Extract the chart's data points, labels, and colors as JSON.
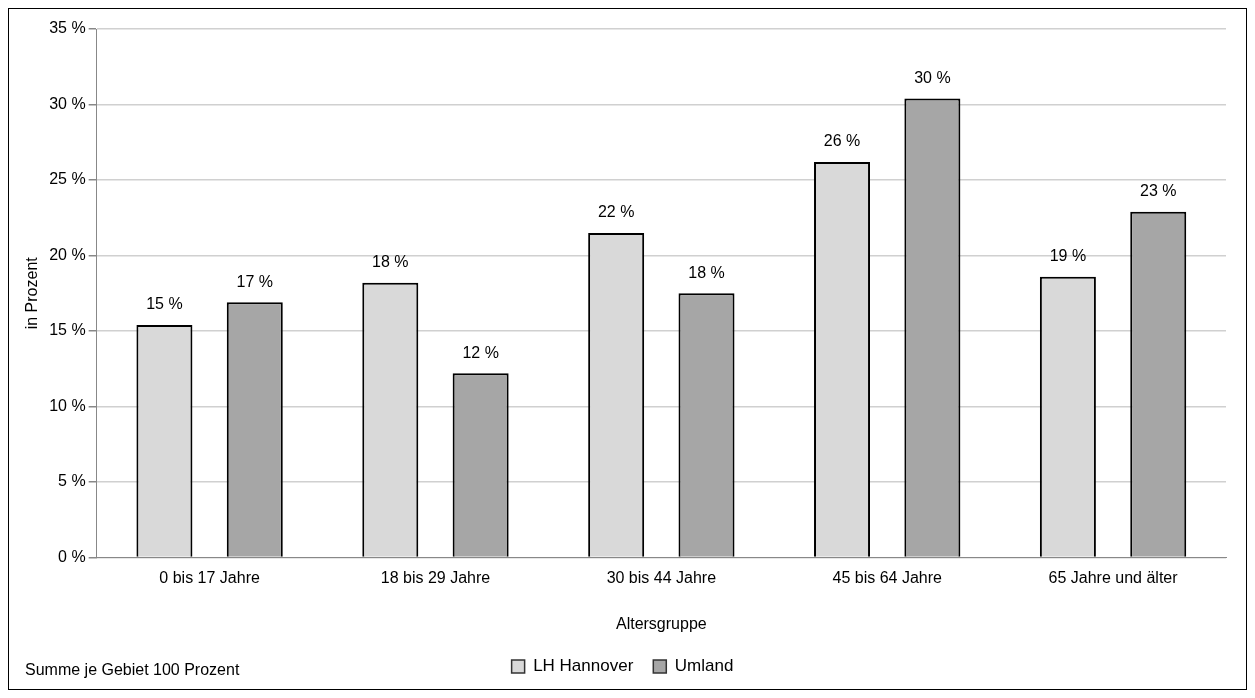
{
  "chart_data": {
    "type": "bar",
    "xlabel": "Altersgruppe",
    "ylabel": "in Prozent",
    "categories": [
      "0 bis 17 Jahre",
      "18 bis 29 Jahre",
      "30 bis 44 Jahre",
      "45 bis 64 Jahre",
      "65 Jahre und älter"
    ],
    "series": [
      {
        "name": "LH Hannover",
        "color": "#d9d9d9",
        "values": [
          15.4,
          18.2,
          21.5,
          26.2,
          18.6
        ],
        "value_labels": [
          "15 %",
          "18 %",
          "22 %",
          "26 %",
          "19 %"
        ]
      },
      {
        "name": "Umland",
        "color": "#a6a6a6",
        "values": [
          16.9,
          12.2,
          17.5,
          30.4,
          22.9
        ],
        "value_labels": [
          "17 %",
          "12 %",
          "18 %",
          "30 %",
          "23 %"
        ]
      }
    ],
    "ylim": [
      0,
      35
    ],
    "yticks": [
      {
        "value": 0,
        "label": "0 %"
      },
      {
        "value": 5,
        "label": "5 %"
      },
      {
        "value": 10,
        "label": "10 %"
      },
      {
        "value": 15,
        "label": "15 %"
      },
      {
        "value": 20,
        "label": "20 %"
      },
      {
        "value": 25,
        "label": "25 %"
      },
      {
        "value": 30,
        "label": "30 %"
      },
      {
        "value": 35,
        "label": "35 %"
      }
    ],
    "grid": "y",
    "legend": "bottom",
    "annotations": [
      "Summe je Gebiet 100 Prozent"
    ]
  }
}
